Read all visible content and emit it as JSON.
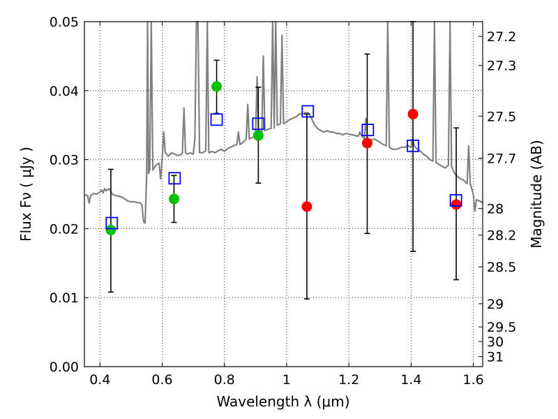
{
  "chart_data": {
    "type": "scatter",
    "xlabel": "Wavelength  λ (μm)",
    "ylabel": "Flux  Fν  ( μJy )",
    "y2label": "Magnitude (AB)",
    "xlim": [
      0.35,
      1.63
    ],
    "ylim": [
      0.0,
      0.05
    ],
    "grid": true,
    "x_ticks": [
      {
        "value": 0.4,
        "label": "0.4"
      },
      {
        "value": 0.6,
        "label": "0.6"
      },
      {
        "value": 0.8,
        "label": "0.8"
      },
      {
        "value": 1.0,
        "label": "1"
      },
      {
        "value": 1.2,
        "label": "1.2"
      },
      {
        "value": 1.4,
        "label": "1.4"
      },
      {
        "value": 1.6,
        "label": "1.6"
      }
    ],
    "y_ticks": [
      {
        "value": 0.0,
        "label": "0.00"
      },
      {
        "value": 0.01,
        "label": "0.01"
      },
      {
        "value": 0.02,
        "label": "0.02"
      },
      {
        "value": 0.03,
        "label": "0.03"
      },
      {
        "value": 0.04,
        "label": "0.04"
      },
      {
        "value": 0.05,
        "label": "0.05"
      }
    ],
    "magnitude_ticks": [
      {
        "mag": 27.2,
        "label": "27.2"
      },
      {
        "mag": 27.3,
        "label": "27.3"
      },
      {
        "mag": 27.5,
        "label": "27.5"
      },
      {
        "mag": 27.7,
        "label": "27.7"
      },
      {
        "mag": 28.0,
        "label": "28"
      },
      {
        "mag": 28.2,
        "label": "28.2"
      },
      {
        "mag": 28.5,
        "label": "28.5"
      },
      {
        "mag": 29.0,
        "label": "29"
      },
      {
        "mag": 29.5,
        "label": "29.5"
      },
      {
        "mag": 30.0,
        "label": "30"
      },
      {
        "mag": 31.0,
        "label": "31"
      }
    ],
    "template_spectrum": {
      "color": "#808080",
      "points": [
        [
          0.35,
          0.0249
        ],
        [
          0.36,
          0.0248
        ],
        [
          0.365,
          0.0237
        ],
        [
          0.37,
          0.0248
        ],
        [
          0.38,
          0.0251
        ],
        [
          0.39,
          0.025
        ],
        [
          0.4,
          0.0253
        ],
        [
          0.405,
          0.0256
        ],
        [
          0.41,
          0.0252
        ],
        [
          0.415,
          0.0258
        ],
        [
          0.42,
          0.0255
        ],
        [
          0.43,
          0.0258
        ],
        [
          0.44,
          0.025
        ],
        [
          0.45,
          0.0248
        ],
        [
          0.46,
          0.0247
        ],
        [
          0.47,
          0.0246
        ],
        [
          0.48,
          0.0243
        ],
        [
          0.49,
          0.024
        ],
        [
          0.5,
          0.0239
        ],
        [
          0.51,
          0.0239
        ],
        [
          0.52,
          0.0238
        ],
        [
          0.53,
          0.0237
        ],
        [
          0.535,
          0.0234
        ],
        [
          0.54,
          0.021
        ],
        [
          0.545,
          0.0208
        ],
        [
          0.55,
          0.0275
        ],
        [
          0.553,
          0.05
        ],
        [
          0.556,
          0.028
        ],
        [
          0.56,
          0.0285
        ],
        [
          0.565,
          0.05
        ],
        [
          0.57,
          0.0285
        ],
        [
          0.58,
          0.0292
        ],
        [
          0.59,
          0.0295
        ],
        [
          0.595,
          0.0272
        ],
        [
          0.6,
          0.03
        ],
        [
          0.605,
          0.034
        ],
        [
          0.61,
          0.031
        ],
        [
          0.62,
          0.0305
        ],
        [
          0.63,
          0.031
        ],
        [
          0.64,
          0.0308
        ],
        [
          0.65,
          0.0306
        ],
        [
          0.66,
          0.0307
        ],
        [
          0.665,
          0.031
        ],
        [
          0.67,
          0.0375
        ],
        [
          0.675,
          0.031
        ],
        [
          0.68,
          0.0308
        ],
        [
          0.69,
          0.031
        ],
        [
          0.7,
          0.0308
        ],
        [
          0.705,
          0.033
        ],
        [
          0.71,
          0.05
        ],
        [
          0.715,
          0.05
        ],
        [
          0.72,
          0.031
        ],
        [
          0.73,
          0.031
        ],
        [
          0.74,
          0.0313
        ],
        [
          0.745,
          0.05
        ],
        [
          0.75,
          0.031
        ],
        [
          0.76,
          0.0312
        ],
        [
          0.77,
          0.031
        ],
        [
          0.78,
          0.0313
        ],
        [
          0.79,
          0.0315
        ],
        [
          0.8,
          0.0312
        ],
        [
          0.81,
          0.0316
        ],
        [
          0.82,
          0.0318
        ],
        [
          0.83,
          0.032
        ],
        [
          0.84,
          0.0322
        ],
        [
          0.845,
          0.034
        ],
        [
          0.85,
          0.0322
        ],
        [
          0.86,
          0.0325
        ],
        [
          0.87,
          0.033
        ],
        [
          0.875,
          0.038
        ],
        [
          0.88,
          0.033
        ],
        [
          0.89,
          0.0332
        ],
        [
          0.9,
          0.0335
        ],
        [
          0.905,
          0.042
        ],
        [
          0.91,
          0.0335
        ],
        [
          0.92,
          0.0338
        ],
        [
          0.925,
          0.045
        ],
        [
          0.93,
          0.0342
        ],
        [
          0.94,
          0.0344
        ],
        [
          0.95,
          0.0345
        ],
        [
          0.955,
          0.05
        ],
        [
          0.96,
          0.0346
        ],
        [
          0.965,
          0.05
        ],
        [
          0.97,
          0.035
        ],
        [
          0.98,
          0.0352
        ],
        [
          0.985,
          0.048
        ],
        [
          0.99,
          0.0352
        ],
        [
          1.0,
          0.0355
        ],
        [
          1.01,
          0.0358
        ],
        [
          1.02,
          0.036
        ],
        [
          1.03,
          0.0362
        ],
        [
          1.04,
          0.0366
        ],
        [
          1.05,
          0.0366
        ],
        [
          1.06,
          0.0368
        ],
        [
          1.07,
          0.0368
        ],
        [
          1.08,
          0.036
        ],
        [
          1.09,
          0.035
        ],
        [
          1.1,
          0.0345
        ],
        [
          1.11,
          0.0342
        ],
        [
          1.12,
          0.034
        ],
        [
          1.13,
          0.0342
        ],
        [
          1.14,
          0.034
        ],
        [
          1.15,
          0.034
        ],
        [
          1.16,
          0.0338
        ],
        [
          1.17,
          0.0338
        ],
        [
          1.18,
          0.0336
        ],
        [
          1.19,
          0.0338
        ],
        [
          1.2,
          0.0337
        ],
        [
          1.21,
          0.0336
        ],
        [
          1.22,
          0.0335
        ],
        [
          1.23,
          0.0334
        ],
        [
          1.235,
          0.034
        ],
        [
          1.24,
          0.0335
        ],
        [
          1.25,
          0.033
        ],
        [
          1.255,
          0.036
        ],
        [
          1.26,
          0.033
        ],
        [
          1.27,
          0.0328
        ],
        [
          1.28,
          0.033
        ],
        [
          1.29,
          0.0328
        ],
        [
          1.3,
          0.0325
        ],
        [
          1.31,
          0.0322
        ],
        [
          1.32,
          0.032
        ],
        [
          1.325,
          0.05
        ],
        [
          1.33,
          0.0318
        ],
        [
          1.34,
          0.0315
        ],
        [
          1.35,
          0.0315
        ],
        [
          1.36,
          0.0316
        ],
        [
          1.37,
          0.0318
        ],
        [
          1.38,
          0.0318
        ],
        [
          1.39,
          0.032
        ],
        [
          1.4,
          0.0318
        ],
        [
          1.405,
          0.033
        ],
        [
          1.41,
          0.032
        ],
        [
          1.42,
          0.0315
        ],
        [
          1.43,
          0.0312
        ],
        [
          1.44,
          0.0308
        ],
        [
          1.45,
          0.0305
        ],
        [
          1.46,
          0.03
        ],
        [
          1.47,
          0.0298
        ],
        [
          1.475,
          0.05
        ],
        [
          1.48,
          0.0296
        ],
        [
          1.49,
          0.0293
        ],
        [
          1.5,
          0.029
        ],
        [
          1.51,
          0.0288
        ],
        [
          1.52,
          0.0292
        ],
        [
          1.525,
          0.05
        ],
        [
          1.53,
          0.029
        ],
        [
          1.54,
          0.028
        ],
        [
          1.55,
          0.0275
        ],
        [
          1.56,
          0.0272
        ],
        [
          1.57,
          0.027
        ],
        [
          1.58,
          0.0265
        ],
        [
          1.585,
          0.032
        ],
        [
          1.59,
          0.0265
        ],
        [
          1.6,
          0.025
        ],
        [
          1.605,
          0.0225
        ],
        [
          1.61,
          0.0242
        ],
        [
          1.62,
          0.024
        ],
        [
          1.63,
          0.0238
        ]
      ]
    },
    "series": [
      {
        "marker": "circle",
        "color": "#00c000",
        "points": [
          {
            "x": 0.435,
            "y": 0.0198,
            "yerr_low": 0.0108,
            "yerr_high": 0.0286
          },
          {
            "x": 0.638,
            "y": 0.0243,
            "yerr_low": 0.0209,
            "yerr_high": 0.0277
          },
          {
            "x": 0.775,
            "y": 0.0406,
            "yerr_low": 0.0367,
            "yerr_high": 0.0444
          },
          {
            "x": 0.909,
            "y": 0.0335,
            "yerr_low": 0.0266,
            "yerr_high": 0.0405
          }
        ]
      },
      {
        "marker": "circle",
        "color": "#ff0000",
        "points": [
          {
            "x": 1.065,
            "y": 0.0232,
            "yerr_low": 0.0098,
            "yerr_high": 0.0366
          },
          {
            "x": 1.259,
            "y": 0.0324,
            "yerr_low": 0.0193,
            "yerr_high": 0.0453
          },
          {
            "x": 1.406,
            "y": 0.0366,
            "yerr_low": 0.0167,
            "yerr_high": 0.05
          },
          {
            "x": 1.545,
            "y": 0.0235,
            "yerr_low": 0.0126,
            "yerr_high": 0.0346
          }
        ]
      },
      {
        "marker": "square",
        "color": "#0000ff",
        "points": [
          {
            "x": 0.438,
            "y": 0.0208
          },
          {
            "x": 0.64,
            "y": 0.0273
          },
          {
            "x": 0.775,
            "y": 0.0358
          },
          {
            "x": 0.909,
            "y": 0.0352
          },
          {
            "x": 1.068,
            "y": 0.037
          },
          {
            "x": 1.261,
            "y": 0.0343
          },
          {
            "x": 1.406,
            "y": 0.032
          },
          {
            "x": 1.544,
            "y": 0.0241
          }
        ]
      }
    ]
  }
}
